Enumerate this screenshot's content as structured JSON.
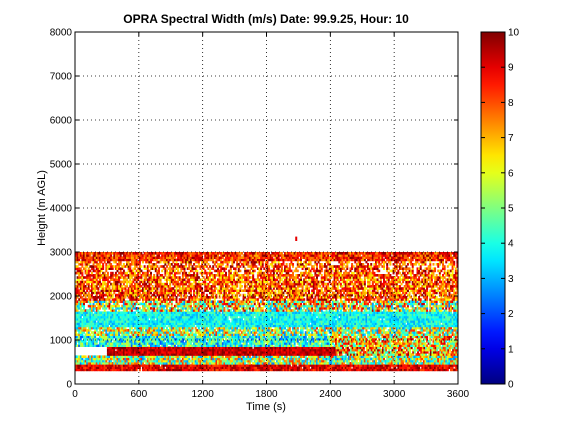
{
  "chart_data": {
    "type": "heatmap",
    "title": "OPRA Spectral Width (m/s)  Date: 99.9.25, Hour: 10",
    "xlabel": "Time (s)",
    "ylabel": "Height (m AGL)",
    "xlim": [
      0,
      3600
    ],
    "ylim": [
      0,
      8000
    ],
    "x_ticks": [
      0,
      600,
      1200,
      1800,
      2400,
      3000,
      3600
    ],
    "y_ticks": [
      0,
      1000,
      2000,
      3000,
      4000,
      5000,
      6000,
      7000,
      8000
    ],
    "grid": true,
    "colorbar": {
      "range": [
        0,
        10
      ],
      "ticks": [
        0,
        1,
        2,
        3,
        4,
        5,
        6,
        7,
        8,
        9,
        10
      ],
      "colormap": "jet"
    },
    "data_region": {
      "height_max": 3000,
      "height_min": 300,
      "outlier": {
        "x": 2070,
        "y": 3250,
        "value": 9
      }
    },
    "bands": [
      {
        "y_from": 300,
        "y_to": 450,
        "x_from": 0,
        "x_to": 3600,
        "base": 9.0,
        "spread": 1.0,
        "density": 0.98
      },
      {
        "y_from": 450,
        "y_to": 650,
        "x_from": 0,
        "x_to": 3600,
        "base": 5.5,
        "spread": 3.0,
        "density": 0.95
      },
      {
        "y_from": 650,
        "y_to": 850,
        "x_from": 300,
        "x_to": 2450,
        "base": 9.3,
        "spread": 0.8,
        "density": 0.98
      },
      {
        "y_from": 650,
        "y_to": 850,
        "x_from": 2450,
        "x_to": 3600,
        "base": 7.0,
        "spread": 3.0,
        "density": 0.9
      },
      {
        "y_from": 850,
        "y_to": 1100,
        "x_from": 0,
        "x_to": 2400,
        "base": 4.0,
        "spread": 2.0,
        "density": 0.95
      },
      {
        "y_from": 850,
        "y_to": 1100,
        "x_from": 2400,
        "x_to": 3600,
        "base": 6.5,
        "spread": 3.0,
        "density": 0.9
      },
      {
        "y_from": 1100,
        "y_to": 1300,
        "x_from": 0,
        "x_to": 3600,
        "base": 5.5,
        "spread": 3.0,
        "density": 0.9
      },
      {
        "y_from": 1300,
        "y_to": 1650,
        "x_from": 0,
        "x_to": 3600,
        "base": 3.8,
        "spread": 1.0,
        "density": 0.98
      },
      {
        "y_from": 1650,
        "y_to": 1900,
        "x_from": 0,
        "x_to": 3600,
        "base": 6.0,
        "spread": 3.5,
        "density": 0.85
      },
      {
        "y_from": 1900,
        "y_to": 2500,
        "x_from": 0,
        "x_to": 3600,
        "base": 8.0,
        "spread": 2.0,
        "density": 0.8
      },
      {
        "y_from": 2500,
        "y_to": 2800,
        "x_from": 0,
        "x_to": 3600,
        "base": 8.2,
        "spread": 2.0,
        "density": 0.65
      },
      {
        "y_from": 2800,
        "y_to": 3000,
        "x_from": 0,
        "x_to": 3600,
        "base": 8.5,
        "spread": 1.5,
        "density": 0.95
      }
    ]
  }
}
